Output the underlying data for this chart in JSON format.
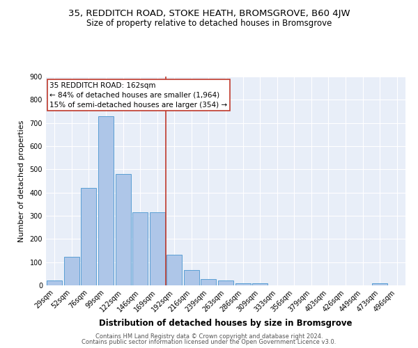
{
  "title1": "35, REDDITCH ROAD, STOKE HEATH, BROMSGROVE, B60 4JW",
  "title2": "Size of property relative to detached houses in Bromsgrove",
  "xlabel": "Distribution of detached houses by size in Bromsgrove",
  "ylabel": "Number of detached properties",
  "categories": [
    "29sqm",
    "52sqm",
    "76sqm",
    "99sqm",
    "122sqm",
    "146sqm",
    "169sqm",
    "192sqm",
    "216sqm",
    "239sqm",
    "263sqm",
    "286sqm",
    "309sqm",
    "333sqm",
    "356sqm",
    "379sqm",
    "403sqm",
    "426sqm",
    "449sqm",
    "473sqm",
    "496sqm"
  ],
  "bar_heights": [
    20,
    122,
    420,
    730,
    480,
    315,
    315,
    132,
    65,
    27,
    22,
    10,
    8,
    0,
    0,
    0,
    0,
    0,
    0,
    10,
    0
  ],
  "bar_color": "#aec6e8",
  "bar_edge_color": "#5a9fd4",
  "vline_color": "#c0392b",
  "vline_x_index": 6,
  "annotation_line1": "35 REDDITCH ROAD: 162sqm",
  "annotation_line2": "← 84% of detached houses are smaller (1,964)",
  "annotation_line3": "15% of semi-detached houses are larger (354) →",
  "annotation_box_color": "#ffffff",
  "annotation_box_edge": "#c0392b",
  "ylim": [
    0,
    900
  ],
  "yticks": [
    0,
    100,
    200,
    300,
    400,
    500,
    600,
    700,
    800,
    900
  ],
  "background_color": "#e8eef8",
  "footer_line1": "Contains HM Land Registry data © Crown copyright and database right 2024.",
  "footer_line2": "Contains public sector information licensed under the Open Government Licence v3.0.",
  "title1_fontsize": 9.5,
  "title2_fontsize": 8.5,
  "xlabel_fontsize": 8.5,
  "ylabel_fontsize": 8,
  "tick_fontsize": 7,
  "annotation_fontsize": 7.5,
  "footer_fontsize": 6
}
